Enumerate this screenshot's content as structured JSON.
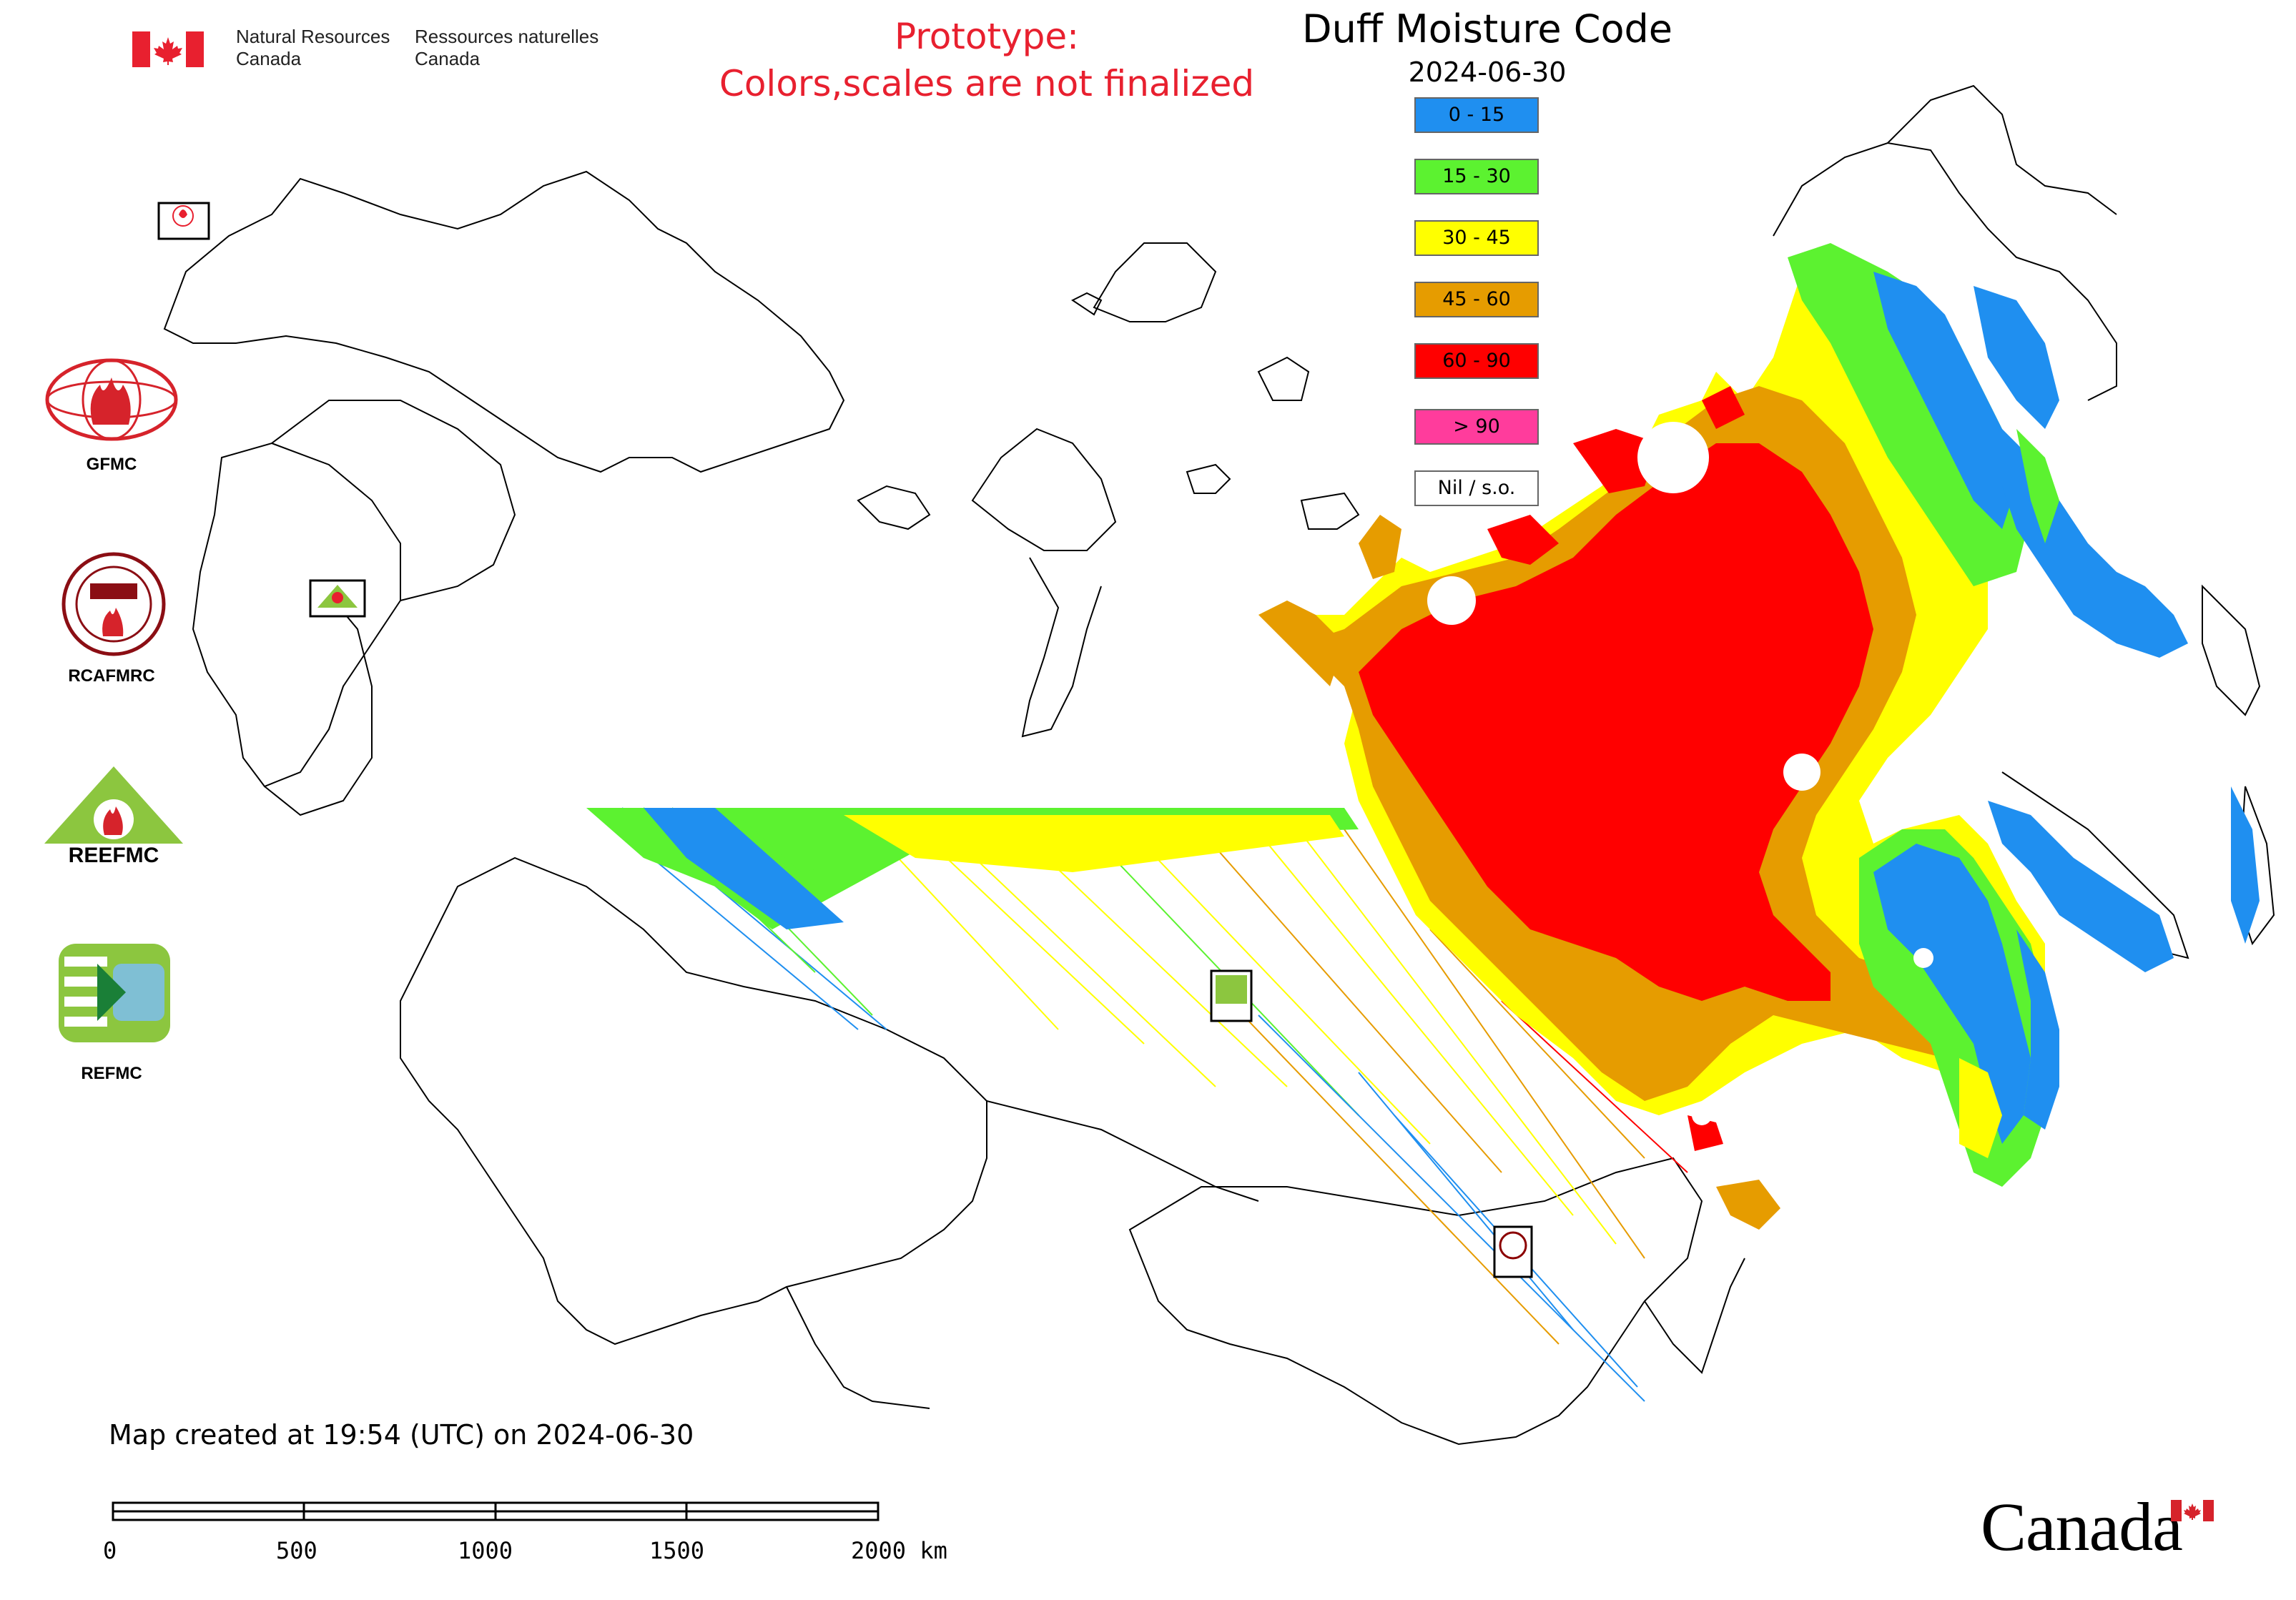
{
  "header": {
    "org_en": [
      "Natural Resources",
      "Canada"
    ],
    "org_fr": [
      "Ressources naturelles",
      "Canada"
    ],
    "prototype_lines": [
      "Prototype:",
      "Colors,scales are not finalized"
    ],
    "title": "Duff Moisture Code",
    "date": "2024-06-30"
  },
  "legend": [
    {
      "label": "0 - 15",
      "color": "#1f8ff0"
    },
    {
      "label": "15 - 30",
      "color": "#5cf230"
    },
    {
      "label": "30 - 45",
      "color": "#ffff00"
    },
    {
      "label": "45 - 60",
      "color": "#e69c00"
    },
    {
      "label": "60 - 90",
      "color": "#ff0000"
    },
    {
      "label": "> 90",
      "color": "#ff3c9c"
    },
    {
      "label": "Nil / s.o.",
      "color": "#ffffff"
    }
  ],
  "logos": [
    {
      "label": "GFMC",
      "icon": "gfmc-logo-icon"
    },
    {
      "label": "RCAFMRC",
      "icon": "rcafmrc-logo-icon"
    },
    {
      "label": "REEFMC",
      "icon": "reefmc-logo-icon"
    },
    {
      "label": "REFMC",
      "icon": "refmc-logo-icon"
    }
  ],
  "footer": {
    "created": "Map created at 19:54 (UTC) on 2024-06-30",
    "scale_ticks": [
      "0",
      "500",
      "1000",
      "1500",
      "2000 km"
    ],
    "wordmark": "Canada"
  }
}
